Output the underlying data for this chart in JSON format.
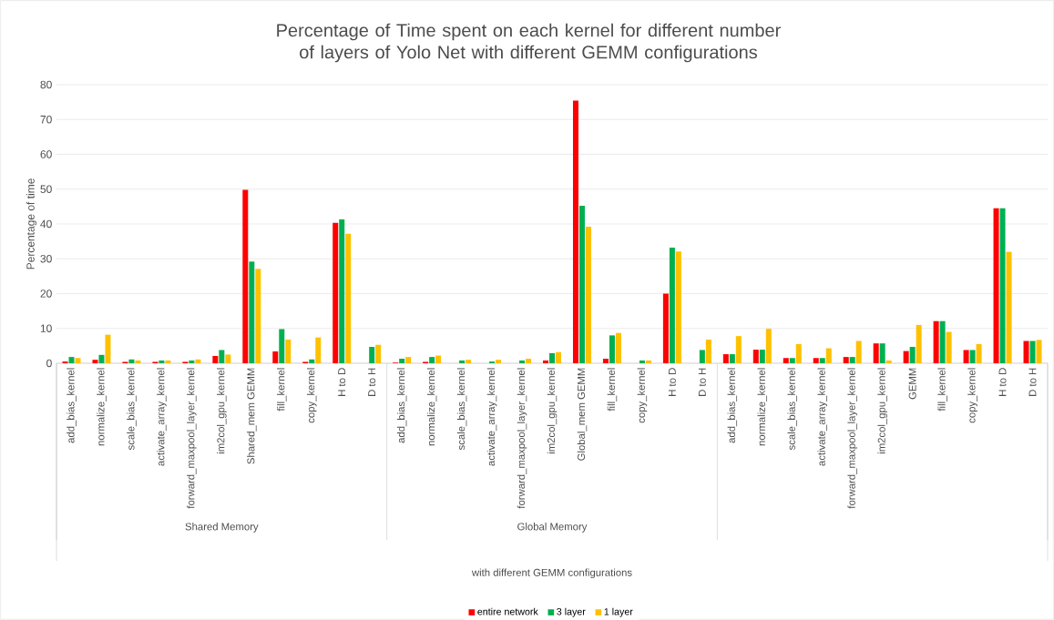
{
  "chart_data": {
    "type": "bar",
    "title": "Percentage of Time spent on each kernel for different number of layers of Yolo Net with different GEMM configurations",
    "ylabel": "Percentage of time",
    "categories": [
      "add_bias_kernel",
      "normalize_kernel",
      "scale_bias_kernel",
      "activate_array_kernel",
      "forward_maxpool_layer_kernel",
      "im2col_gpu_kernel",
      "Shared_mem GEMM",
      "fill_kernel",
      "copy_kernel",
      "H to D",
      "D to H",
      "add_bias_kernel",
      "normalize_kernel",
      "scale_bias_kernel",
      "activate_array_kernel",
      "forward_maxpool_layer_kernel",
      "im2col_gpu_kernel",
      "Global_mem GEMM",
      "fill_kernel",
      "copy_kernel",
      "H to D",
      "D to H",
      "add_bias_kernel",
      "normalize_kernel",
      "scale_bias_kernel",
      "activate_array_kernel",
      "forward_maxpool_layer_kernel",
      "im2col_gpu_kernel",
      "GEMM",
      "fill_kernel",
      "copy_kernel",
      "H to D",
      "D to H"
    ],
    "series": [
      {
        "name": "entire network",
        "color": "#ff0000",
        "values": [
          0.5,
          1.0,
          0.4,
          0.4,
          0.4,
          2.1,
          49.8,
          3.4,
          0.4,
          40.3,
          null,
          0.2,
          0.4,
          null,
          null,
          null,
          0.8,
          75.4,
          1.3,
          null,
          20.0,
          null,
          2.6,
          3.9,
          1.5,
          1.5,
          1.8,
          5.7,
          3.5,
          12.1,
          3.8,
          44.5,
          6.4
        ]
      },
      {
        "name": "3 layer",
        "color": "#00b050",
        "values": [
          1.8,
          2.4,
          1.1,
          0.8,
          0.8,
          3.8,
          29.2,
          9.8,
          1.1,
          41.3,
          4.7,
          1.3,
          1.8,
          0.8,
          0.5,
          0.8,
          2.9,
          45.2,
          8.0,
          0.8,
          33.2,
          3.8,
          2.6,
          3.9,
          1.5,
          1.5,
          1.8,
          5.7,
          4.7,
          12.1,
          3.8,
          44.5,
          6.4
        ]
      },
      {
        "name": "1 layer",
        "color": "#ffc000",
        "values": [
          1.5,
          8.2,
          0.8,
          0.8,
          1.1,
          2.5,
          27.1,
          6.8,
          7.4,
          37.2,
          5.3,
          1.8,
          2.2,
          1.0,
          1.0,
          1.3,
          3.2,
          39.2,
          8.7,
          0.8,
          32.1,
          6.8,
          7.8,
          9.9,
          5.5,
          4.3,
          6.4,
          0.8,
          11.0,
          9.0,
          5.5,
          32.0,
          6.7
        ]
      }
    ],
    "annotations": [
      "Shared Memory",
      "Global Memory",
      "with different GEMM configurations"
    ],
    "ylim": [
      0,
      80
    ],
    "yticks": [
      0,
      10,
      20,
      30,
      40,
      50,
      60,
      70,
      80
    ],
    "grid": "y",
    "legend": "bottom"
  }
}
